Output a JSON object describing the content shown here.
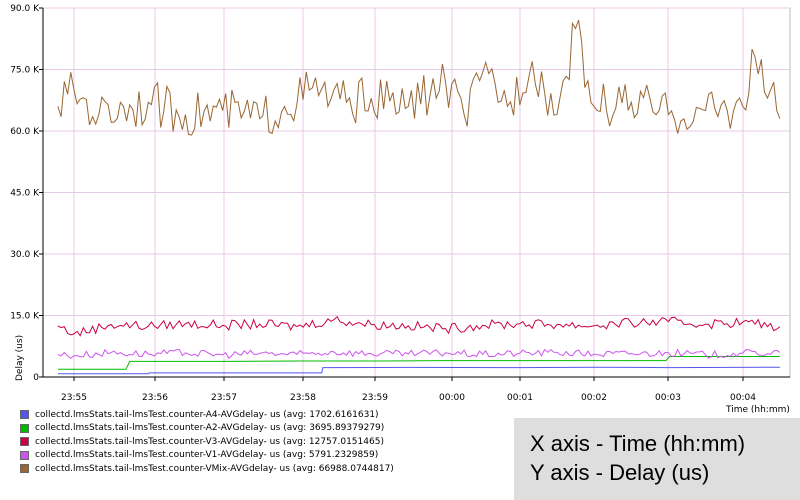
{
  "chart_data": {
    "type": "line",
    "xlabel": "Time (hh:mm)",
    "ylabel": "Delay (us)",
    "x_ticks": [
      "23:55",
      "23:56",
      "23:57",
      "23:58",
      "23:59",
      "00:00",
      "00:01",
      "00:02",
      "00:03",
      "00:04"
    ],
    "y_ticks": [
      "0",
      "15.0 K",
      "30.0 K",
      "45.0 K",
      "60.0 K",
      "75.0 K",
      "90.0 K"
    ],
    "ylim": [
      0,
      90000
    ],
    "grid": true,
    "legend_position": "bottom-left",
    "series": [
      {
        "name": "collectd.lmsStats.tail-lmsTest.counter-A4-AVGdelay- us",
        "avg_label": "(avg: 1702.6161631)",
        "color": "#5555ee",
        "x": [
          "23:54:47",
          "23:56:00",
          "23:56:01",
          "23:58:20",
          "23:58:21",
          "23:59:30",
          "00:01:00",
          "00:02:00",
          "00:03:00",
          "00:04:30"
        ],
        "values": [
          800,
          800,
          1000,
          1000,
          2300,
          2350,
          2300,
          2400,
          2300,
          2400
        ]
      },
      {
        "name": "collectd.lmsStats.tail-lmsTest.counter-A2-AVGdelay- us",
        "avg_label": "(avg: 3695.89379279)",
        "color": "#00bb00",
        "x": [
          "23:54:47",
          "23:55:42",
          "23:55:45",
          "23:57:00",
          "23:58:00",
          "23:59:00",
          "00:00:00",
          "00:01:00",
          "00:02:00",
          "00:02:58",
          "00:03:01",
          "00:04:00",
          "00:04:30"
        ],
        "values": [
          1900,
          1900,
          3800,
          3800,
          3900,
          3900,
          4000,
          4000,
          4000,
          4000,
          5000,
          5000,
          5000
        ]
      },
      {
        "name": "collectd.lmsStats.tail-lmsTest.counter-V3-AVGdelay- us",
        "avg_label": "(avg: 12757.0151465)",
        "color": "#cc0044",
        "x": [
          "23:54:47",
          "23:55:00",
          "23:55:30",
          "23:56:00",
          "23:56:30",
          "23:57:00",
          "23:57:30",
          "23:58:00",
          "23:58:30",
          "23:59:00",
          "23:59:30",
          "00:00:00",
          "00:00:30",
          "00:01:00",
          "00:01:30",
          "00:02:00",
          "00:02:30",
          "00:03:00",
          "00:03:30",
          "00:04:00",
          "00:04:30"
        ],
        "values": [
          12500,
          10500,
          12800,
          12400,
          13000,
          12600,
          12900,
          12300,
          14000,
          12800,
          12500,
          11800,
          12600,
          13000,
          12800,
          12500,
          13200,
          13500,
          12900,
          13400,
          12300
        ]
      },
      {
        "name": "collectd.lmsStats.tail-lmsTest.counter-V1-AVGdelay- us",
        "avg_label": "(avg: 5791.2329859)",
        "color": "#cc55ee",
        "x": [
          "23:54:47",
          "23:55:00",
          "23:55:30",
          "23:56:00",
          "23:56:30",
          "23:57:00",
          "23:57:30",
          "23:58:00",
          "23:58:30",
          "23:59:00",
          "23:59:30",
          "00:00:00",
          "00:00:30",
          "00:01:00",
          "00:01:30",
          "00:02:00",
          "00:02:30",
          "00:03:00",
          "00:03:30",
          "00:04:00",
          "00:04:30"
        ],
        "values": [
          5500,
          5200,
          6000,
          5600,
          5900,
          5400,
          5800,
          5500,
          6100,
          5700,
          5600,
          5900,
          5500,
          5800,
          6000,
          5600,
          5700,
          5900,
          5400,
          5800,
          6000
        ]
      },
      {
        "name": "collectd.lmsStats.tail-lmsTest.counter-VMix-AVGdelay- us",
        "avg_label": "(avg: 66988.0744817)",
        "color": "#996633",
        "x": [
          "23:54:47",
          "23:55:00",
          "23:55:20",
          "23:55:40",
          "23:56:00",
          "23:56:30",
          "23:57:00",
          "23:57:30",
          "23:57:50",
          "23:58:10",
          "23:58:40",
          "23:59:00",
          "23:59:30",
          "00:00:00",
          "00:00:15",
          "00:00:35",
          "00:00:50",
          "00:01:10",
          "00:01:30",
          "00:01:45",
          "00:02:00",
          "00:02:30",
          "00:03:00",
          "00:03:30",
          "00:04:00",
          "00:04:10",
          "00:04:30"
        ],
        "values": [
          66000,
          70000,
          64000,
          66000,
          67000,
          64000,
          65000,
          63000,
          66000,
          70000,
          67000,
          68000,
          66000,
          72000,
          64000,
          74000,
          66000,
          77000,
          64000,
          85000,
          66000,
          67000,
          64000,
          65000,
          66000,
          78000,
          63000
        ]
      }
    ]
  },
  "caption": {
    "line1": "X axis - Time (hh:mm)",
    "line2": "Y axis - Delay (us)"
  }
}
